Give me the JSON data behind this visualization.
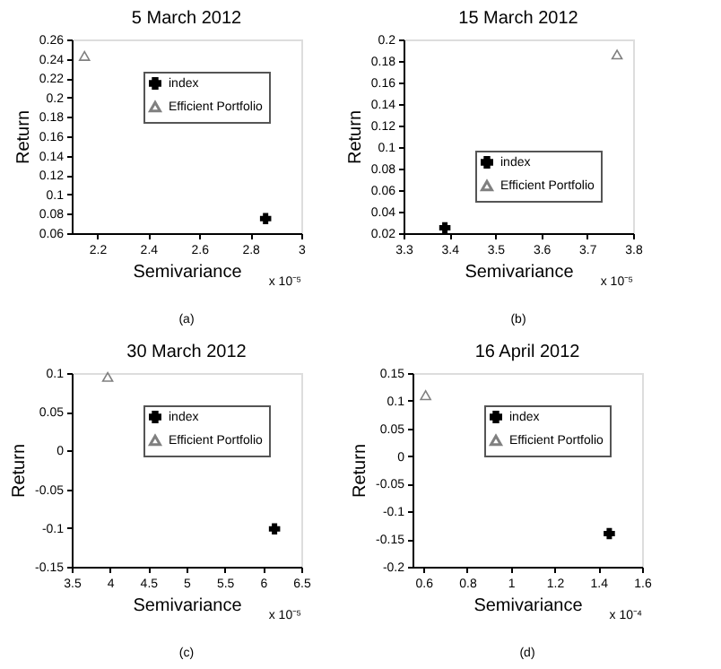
{
  "chart_data": [
    {
      "type": "scatter",
      "title": "5 March 2012",
      "xlabel": "Semivariance",
      "ylabel": "Return",
      "xlim": [
        2.1,
        3
      ],
      "xticks": [
        2.2,
        2.4,
        2.6,
        2.8,
        3
      ],
      "ylim": [
        0.06,
        0.26
      ],
      "yticks": [
        0.06,
        0.08,
        0.1,
        0.12,
        0.14,
        0.16,
        0.18,
        0.2,
        0.22,
        0.24,
        0.26
      ],
      "legend": "top right",
      "grid": false,
      "annotations": [
        "x 10⁻⁵",
        "(a)"
      ],
      "series": [
        {
          "name": "index",
          "color": "#000000",
          "marker": "cross",
          "x": [
            2.86
          ],
          "values": [
            0.075
          ]
        },
        {
          "name": "Efficient Portfolio",
          "color": "#808080",
          "marker": "triangle",
          "x": [
            2.15
          ],
          "values": [
            0.243
          ]
        }
      ]
    },
    {
      "type": "scatter",
      "title": "15 March 2012",
      "xlabel": "Semivariance",
      "ylabel": "Return",
      "xlim": [
        3.3,
        3.8
      ],
      "xticks": [
        3.3,
        3.4,
        3.5,
        3.6,
        3.7,
        3.8
      ],
      "ylim": [
        0.02,
        0.2
      ],
      "yticks": [
        0.02,
        0.04,
        0.06,
        0.08,
        0.1,
        0.12,
        0.14,
        0.16,
        0.18,
        0.2
      ],
      "legend": "bottom right",
      "grid": false,
      "annotations": [
        "x 10⁻⁵",
        "(b)"
      ],
      "series": [
        {
          "name": "index",
          "color": "#000000",
          "marker": "cross",
          "x": [
            3.39
          ],
          "values": [
            0.025
          ]
        },
        {
          "name": "Efficient Portfolio",
          "color": "#808080",
          "marker": "triangle",
          "x": [
            3.765
          ],
          "values": [
            0.186
          ]
        }
      ]
    },
    {
      "type": "scatter",
      "title": "30 March 2012",
      "xlabel": "Semivariance",
      "ylabel": "Return",
      "xlim": [
        3.5,
        6.5
      ],
      "xticks": [
        3.5,
        4,
        4.5,
        5,
        5.5,
        6,
        6.5
      ],
      "ylim": [
        -0.15,
        0.1
      ],
      "yticks": [
        -0.15,
        -0.1,
        -0.05,
        0,
        0.05,
        0.1
      ],
      "legend": "top right",
      "grid": false,
      "annotations": [
        "x 10⁻⁵",
        "(c)"
      ],
      "series": [
        {
          "name": "index",
          "color": "#000000",
          "marker": "cross",
          "x": [
            6.15
          ],
          "values": [
            -0.101
          ]
        },
        {
          "name": "Efficient Portfolio",
          "color": "#808080",
          "marker": "triangle",
          "x": [
            3.97
          ],
          "values": [
            0.095
          ]
        }
      ]
    },
    {
      "type": "scatter",
      "title": "16 April 2012",
      "xlabel": "Semivariance",
      "ylabel": "Return",
      "xlim": [
        0.55,
        1.6
      ],
      "xticks": [
        0.6,
        0.8,
        1,
        1.2,
        1.4,
        1.6
      ],
      "ylim": [
        -0.2,
        0.15
      ],
      "yticks": [
        -0.2,
        -0.15,
        -0.1,
        -0.05,
        0,
        0.05,
        0.1,
        0.15
      ],
      "legend": "top right",
      "grid": false,
      "annotations": [
        "x 10⁻⁴",
        "(d)"
      ],
      "series": [
        {
          "name": "index",
          "color": "#000000",
          "marker": "cross",
          "x": [
            1.45
          ],
          "values": [
            -0.14
          ]
        },
        {
          "name": "Efficient Portfolio",
          "color": "#808080",
          "marker": "triangle",
          "x": [
            0.61
          ],
          "values": [
            0.11
          ]
        }
      ]
    }
  ]
}
